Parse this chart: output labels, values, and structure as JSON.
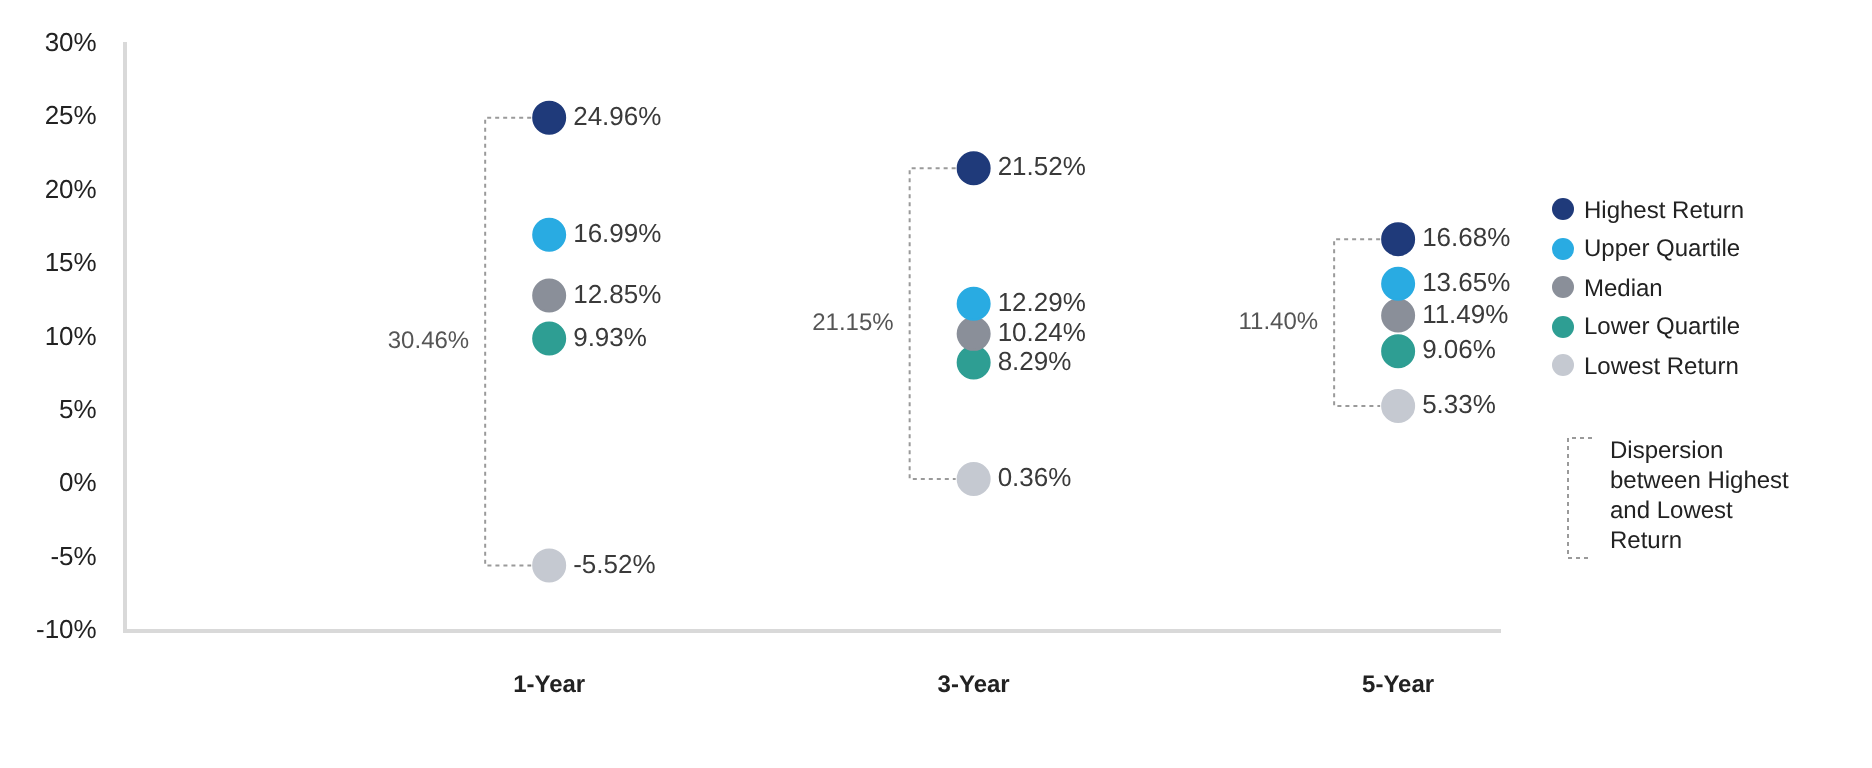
{
  "chart_data": {
    "type": "scatter",
    "categories": [
      "1-Year",
      "3-Year",
      "5-Year"
    ],
    "series": [
      {
        "name": "Highest Return",
        "color": "#1f3a7a",
        "values": [
          24.96,
          21.52,
          16.68
        ],
        "value_labels": [
          "24.96%",
          "21.52%",
          "16.68%"
        ]
      },
      {
        "name": "Upper Quartile",
        "color": "#29abe2",
        "values": [
          16.99,
          12.29,
          13.65
        ],
        "value_labels": [
          "16.99%",
          "12.29%",
          "13.65%"
        ]
      },
      {
        "name": "Median",
        "color": "#8a8f99",
        "values": [
          12.85,
          10.24,
          11.49
        ],
        "value_labels": [
          "12.85%",
          "10.24%",
          "11.49%"
        ]
      },
      {
        "name": "Lower Quartile",
        "color": "#2e9e93",
        "values": [
          9.93,
          8.29,
          9.06
        ],
        "value_labels": [
          "9.93%",
          "8.29%",
          "9.06%"
        ]
      },
      {
        "name": "Lowest Return",
        "color": "#c5c9d1",
        "values": [
          -5.52,
          0.36,
          5.33
        ],
        "value_labels": [
          "-5.52%",
          "0.36%",
          "5.33%"
        ]
      }
    ],
    "ylim": [
      -10,
      30
    ],
    "yticks": [
      {
        "value": -10,
        "label": "-10%"
      },
      {
        "value": -5,
        "label": "-5%"
      },
      {
        "value": 0,
        "label": "0%"
      },
      {
        "value": 5,
        "label": "5%"
      },
      {
        "value": 10,
        "label": "10%"
      },
      {
        "value": 15,
        "label": "15%"
      },
      {
        "value": 20,
        "label": "20%"
      },
      {
        "value": 25,
        "label": "25%"
      },
      {
        "value": 30,
        "label": "30%"
      }
    ],
    "annotations": [
      "30.46%",
      "21.15%",
      "11.40%",
      "Dispersion between Highest and Lowest Return"
    ],
    "marker": "circle",
    "grid": false,
    "legend": "right"
  }
}
